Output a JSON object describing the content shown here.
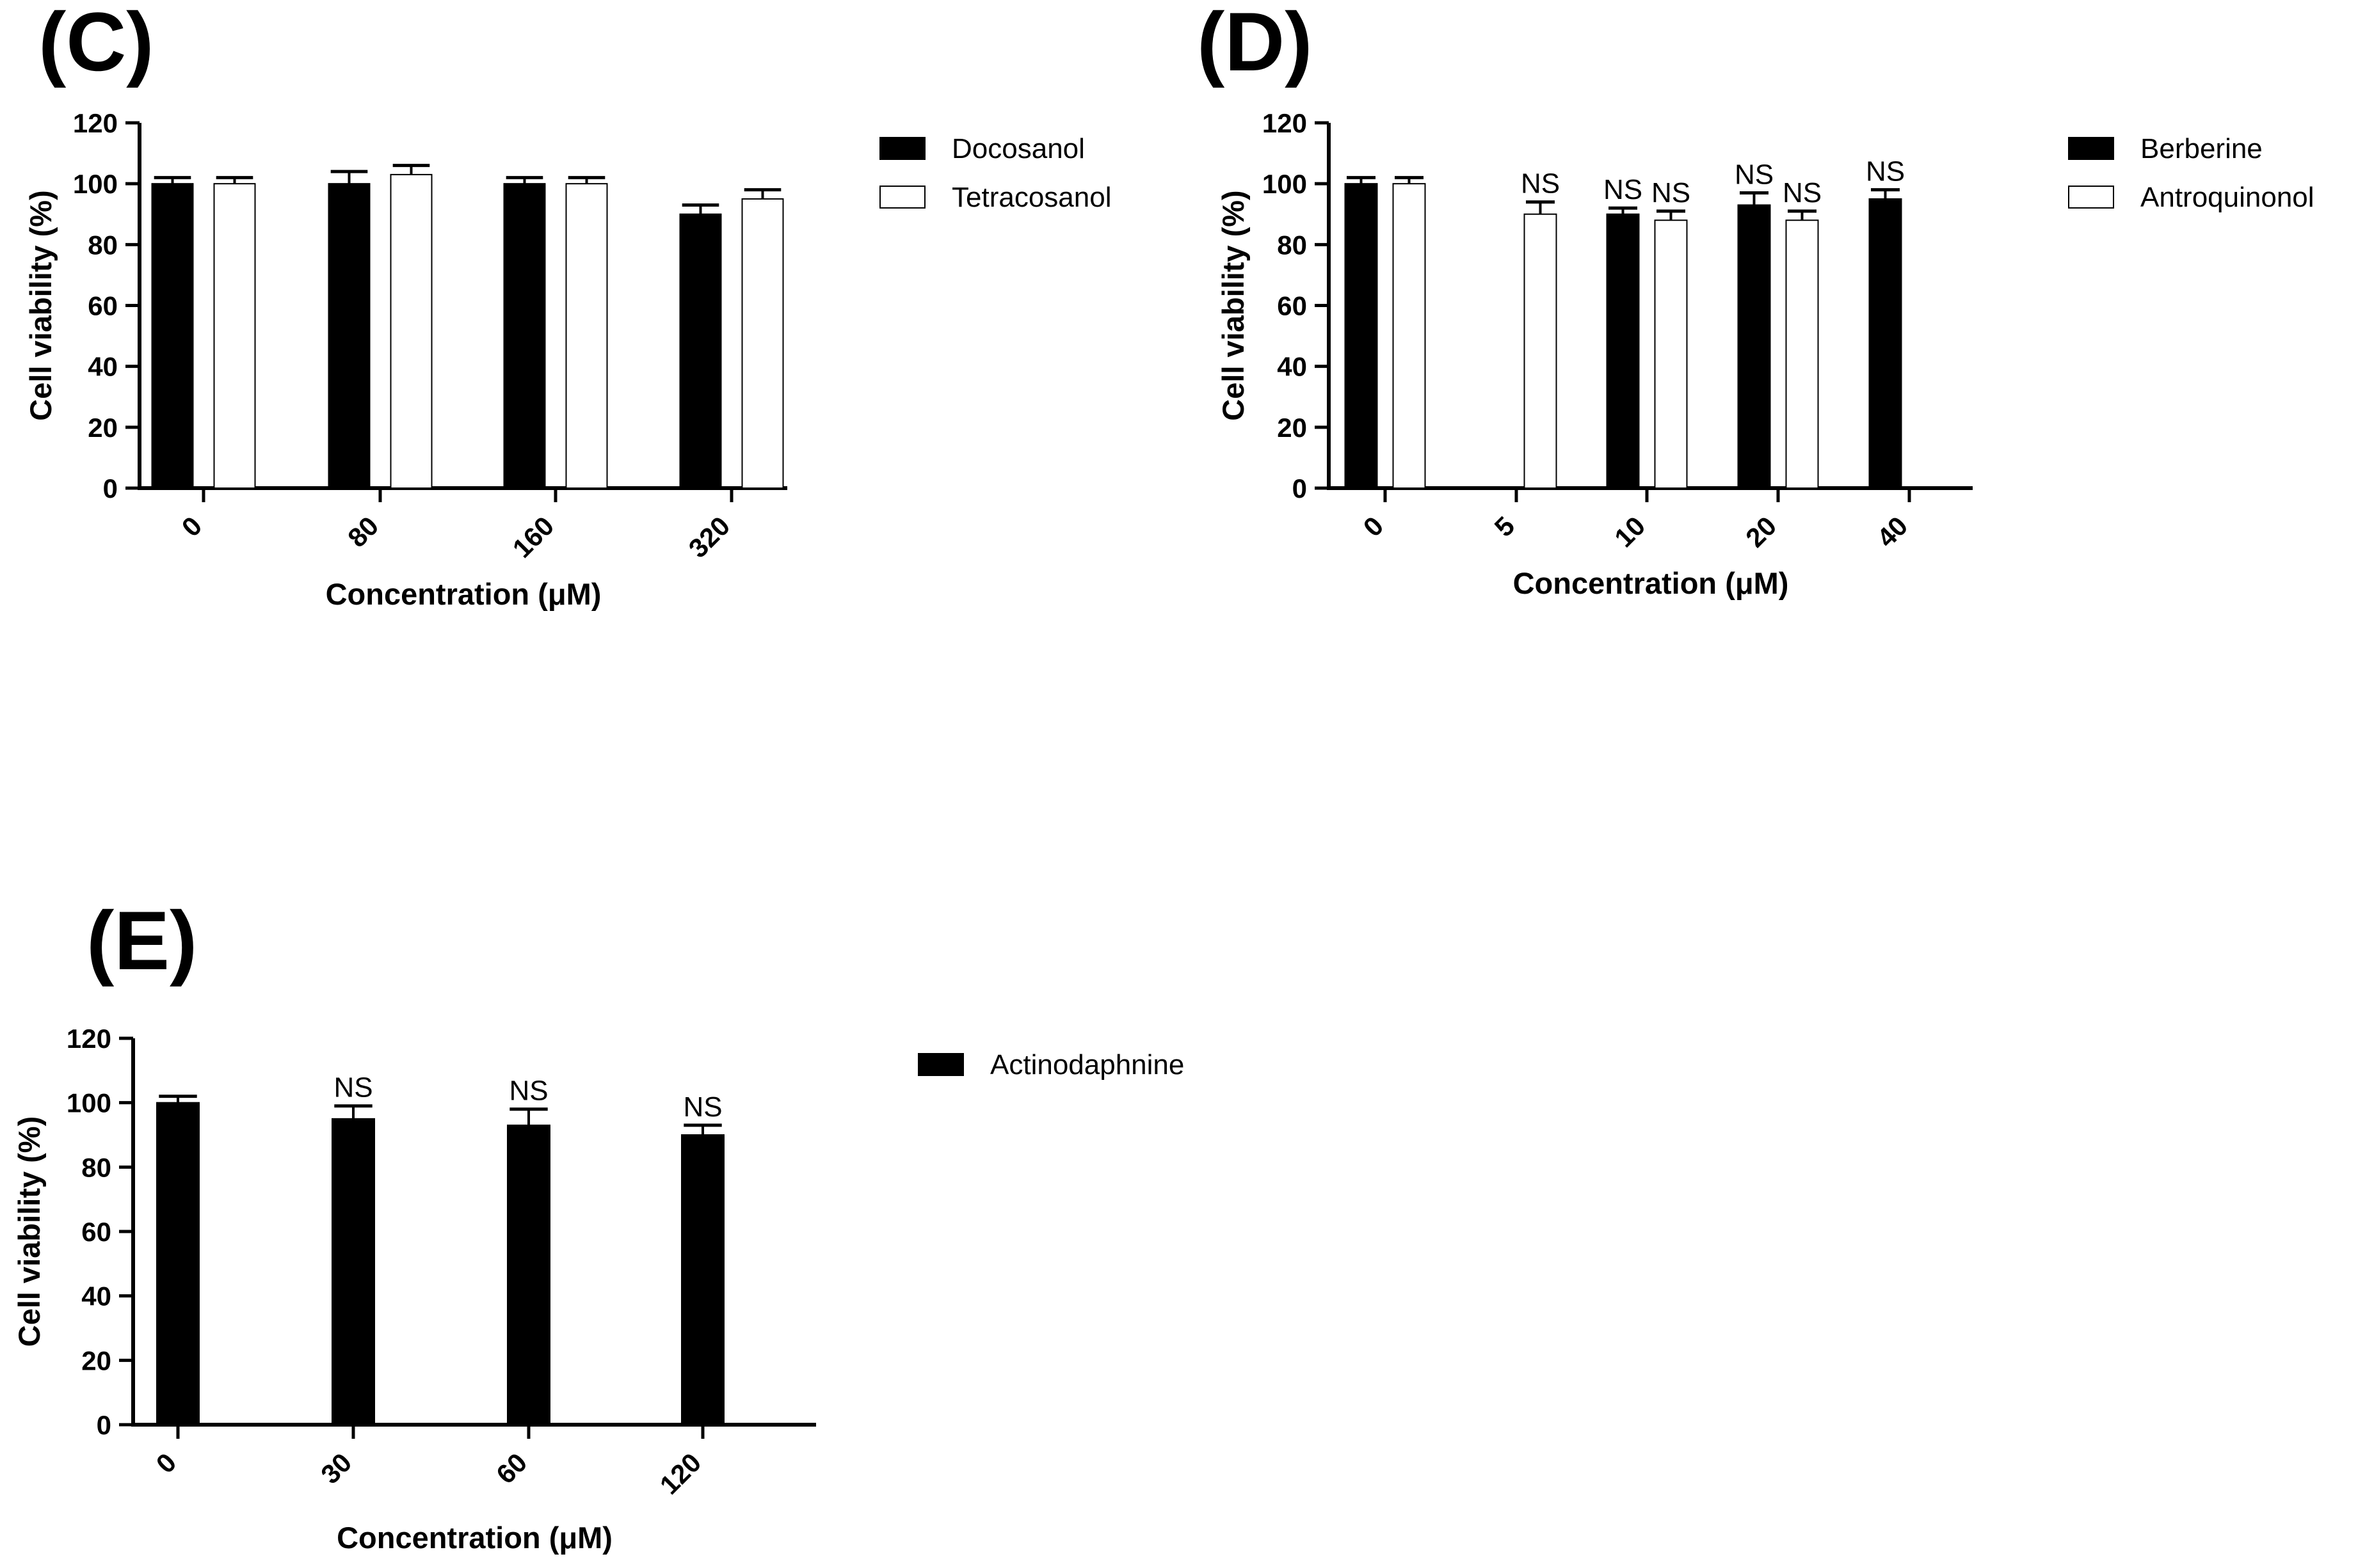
{
  "chart_data": [
    {
      "type": "bar",
      "panel": "(C)",
      "categories": [
        "0",
        "80",
        "160",
        "320"
      ],
      "series": [
        {
          "name": "Docosanol",
          "fill": "#000000",
          "values": [
            100,
            100,
            100,
            90
          ],
          "errors": [
            2,
            4,
            2,
            3
          ],
          "annotations": [
            "",
            "",
            "",
            ""
          ]
        },
        {
          "name": "Tetracosanol",
          "fill": "#ffffff",
          "values": [
            100,
            103,
            100,
            95
          ],
          "errors": [
            2,
            3,
            2,
            3
          ],
          "annotations": [
            "",
            "",
            "",
            ""
          ]
        }
      ],
      "xlabel": "Concentration (μM)",
      "ylabel": "Cell viability (%)",
      "ylim": [
        0,
        120
      ],
      "yticks": [
        "0",
        "20",
        "40",
        "60",
        "80",
        "100",
        "120"
      ],
      "legend": "top-right"
    },
    {
      "type": "bar",
      "panel": "(D)",
      "categories": [
        "0",
        "5",
        "10",
        "20",
        "40"
      ],
      "series": [
        {
          "name": "Berberine",
          "fill": "#000000",
          "values": [
            100,
            null,
            90,
            93,
            95
          ],
          "errors": [
            2,
            null,
            2,
            4,
            3
          ],
          "annotations": [
            "",
            "",
            "NS",
            "NS",
            "NS"
          ]
        },
        {
          "name": "Antroquinonol",
          "fill": "#ffffff",
          "values": [
            100,
            90,
            88,
            88,
            null
          ],
          "errors": [
            2,
            4,
            3,
            3,
            null
          ],
          "annotations": [
            "",
            "NS",
            "NS",
            "NS",
            ""
          ]
        }
      ],
      "xlabel": "Concentration (μM)",
      "ylabel": "Cell viability (%)",
      "ylim": [
        0,
        120
      ],
      "yticks": [
        "0",
        "20",
        "40",
        "60",
        "80",
        "100",
        "120"
      ],
      "legend": "top-right"
    },
    {
      "type": "bar",
      "panel": "(E)",
      "categories": [
        "0",
        "30",
        "60",
        "120"
      ],
      "series": [
        {
          "name": "Actinodaphnine",
          "fill": "#000000",
          "values": [
            100,
            95,
            93,
            90
          ],
          "errors": [
            2,
            4,
            5,
            3
          ],
          "annotations": [
            "",
            "NS",
            "NS",
            "NS"
          ]
        }
      ],
      "xlabel": "Concentration (μM)",
      "ylabel": "Cell viability (%)",
      "ylim": [
        0,
        120
      ],
      "yticks": [
        "0",
        "20",
        "40",
        "60",
        "80",
        "100",
        "120"
      ],
      "legend": "top-right"
    }
  ]
}
